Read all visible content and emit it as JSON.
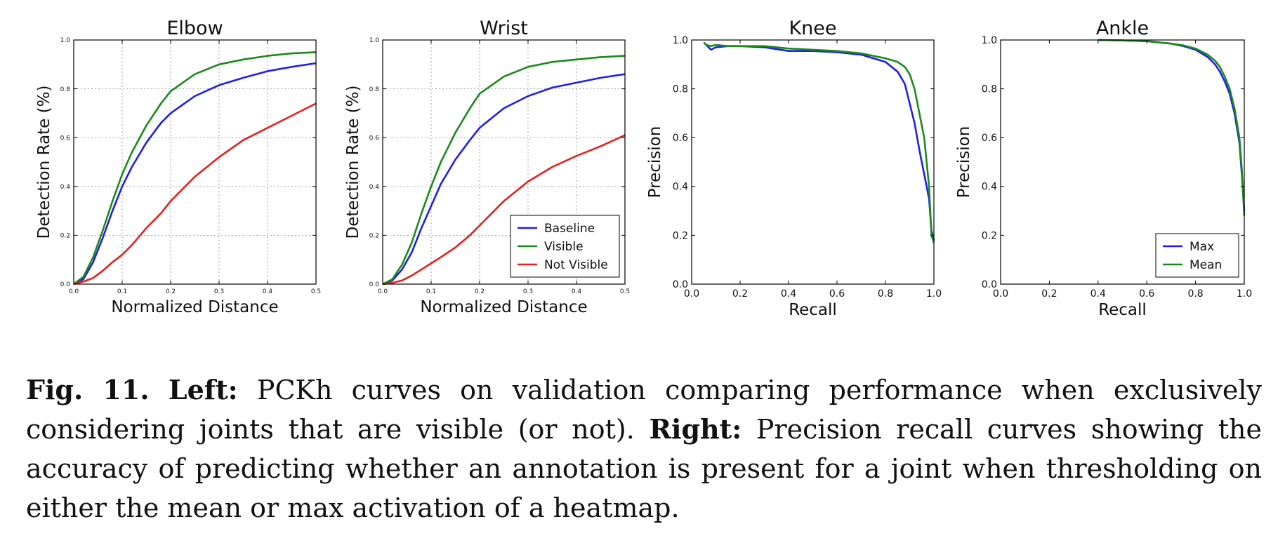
{
  "chart_data": [
    {
      "type": "line",
      "title": "Elbow",
      "xlabel": "Normalized Distance",
      "ylabel": "Detection Rate (%)",
      "xlim": [
        0,
        0.5
      ],
      "ylim": [
        0,
        1.0
      ],
      "xticks": [
        "0.0",
        "0.1",
        "0.2",
        "0.3",
        "0.4",
        "0.5"
      ],
      "yticks": [
        "0.0",
        "0.2",
        "0.4",
        "0.6",
        "0.8",
        "1.0"
      ],
      "grid": true,
      "legend": null,
      "series": [
        {
          "color": "#1f1fe6",
          "x": [
            0,
            0.02,
            0.04,
            0.06,
            0.08,
            0.1,
            0.12,
            0.15,
            0.18,
            0.2,
            0.25,
            0.3,
            0.35,
            0.4,
            0.45,
            0.5
          ],
          "y": [
            0,
            0.02,
            0.09,
            0.19,
            0.3,
            0.4,
            0.48,
            0.58,
            0.66,
            0.7,
            0.77,
            0.815,
            0.845,
            0.872,
            0.89,
            0.905
          ]
        },
        {
          "color": "#1a8a1a",
          "x": [
            0,
            0.02,
            0.04,
            0.06,
            0.08,
            0.1,
            0.12,
            0.15,
            0.18,
            0.2,
            0.25,
            0.3,
            0.35,
            0.4,
            0.45,
            0.5
          ],
          "y": [
            0,
            0.03,
            0.11,
            0.22,
            0.34,
            0.45,
            0.54,
            0.65,
            0.74,
            0.79,
            0.86,
            0.9,
            0.92,
            0.935,
            0.945,
            0.95
          ]
        },
        {
          "color": "#e61f1f",
          "x": [
            0,
            0.02,
            0.04,
            0.06,
            0.08,
            0.1,
            0.12,
            0.15,
            0.18,
            0.2,
            0.25,
            0.3,
            0.35,
            0.4,
            0.45,
            0.5
          ],
          "y": [
            0,
            0.01,
            0.025,
            0.055,
            0.09,
            0.12,
            0.16,
            0.23,
            0.29,
            0.34,
            0.44,
            0.52,
            0.59,
            0.64,
            0.69,
            0.74
          ]
        }
      ]
    },
    {
      "type": "line",
      "title": "Wrist",
      "xlabel": "Normalized Distance",
      "ylabel": "Detection Rate (%)",
      "xlim": [
        0,
        0.5
      ],
      "ylim": [
        0,
        1.0
      ],
      "xticks": [
        "0.0",
        "0.1",
        "0.2",
        "0.3",
        "0.4",
        "0.5"
      ],
      "yticks": [
        "0.0",
        "0.2",
        "0.4",
        "0.6",
        "0.8",
        "1.0"
      ],
      "grid": true,
      "legend": "lower-right",
      "series": [
        {
          "name": "Baseline",
          "color": "#1f1fe6",
          "x": [
            0,
            0.02,
            0.04,
            0.06,
            0.08,
            0.1,
            0.12,
            0.15,
            0.18,
            0.2,
            0.25,
            0.3,
            0.35,
            0.4,
            0.45,
            0.5
          ],
          "y": [
            0,
            0.015,
            0.06,
            0.13,
            0.23,
            0.32,
            0.41,
            0.51,
            0.59,
            0.64,
            0.72,
            0.77,
            0.805,
            0.825,
            0.845,
            0.86
          ]
        },
        {
          "name": "Visible",
          "color": "#1a8a1a",
          "x": [
            0,
            0.02,
            0.04,
            0.06,
            0.08,
            0.1,
            0.12,
            0.15,
            0.18,
            0.2,
            0.25,
            0.3,
            0.35,
            0.4,
            0.45,
            0.5
          ],
          "y": [
            0,
            0.02,
            0.08,
            0.17,
            0.29,
            0.4,
            0.5,
            0.62,
            0.72,
            0.78,
            0.85,
            0.89,
            0.91,
            0.92,
            0.93,
            0.935
          ]
        },
        {
          "name": "Not Visible",
          "color": "#e61f1f",
          "x": [
            0,
            0.02,
            0.04,
            0.06,
            0.08,
            0.1,
            0.12,
            0.15,
            0.18,
            0.2,
            0.25,
            0.3,
            0.35,
            0.4,
            0.45,
            0.5
          ],
          "y": [
            0,
            0.005,
            0.015,
            0.035,
            0.06,
            0.085,
            0.11,
            0.15,
            0.2,
            0.24,
            0.34,
            0.42,
            0.48,
            0.525,
            0.565,
            0.61
          ]
        }
      ]
    },
    {
      "type": "line",
      "title": "Knee",
      "xlabel": "Recall",
      "ylabel": "Precision",
      "xlim": [
        0,
        1.0
      ],
      "ylim": [
        0,
        1.0
      ],
      "xticks": [
        "0.0",
        "0.2",
        "0.4",
        "0.6",
        "0.8",
        "1.0"
      ],
      "yticks": [
        "0.0",
        "0.2",
        "0.4",
        "0.6",
        "0.8",
        "1.0"
      ],
      "grid": false,
      "legend": null,
      "series": [
        {
          "color": "#1f1fe6",
          "x": [
            0.05,
            0.06,
            0.08,
            0.1,
            0.15,
            0.2,
            0.3,
            0.4,
            0.5,
            0.6,
            0.7,
            0.8,
            0.85,
            0.88,
            0.9,
            0.92,
            0.94,
            0.96,
            0.98,
            0.99,
            1.0
          ],
          "y": [
            0.99,
            0.98,
            0.96,
            0.97,
            0.975,
            0.975,
            0.97,
            0.955,
            0.955,
            0.95,
            0.94,
            0.91,
            0.87,
            0.82,
            0.74,
            0.66,
            0.55,
            0.45,
            0.35,
            0.22,
            0.18
          ]
        },
        {
          "color": "#1a8a1a",
          "x": [
            0.05,
            0.06,
            0.08,
            0.1,
            0.15,
            0.2,
            0.3,
            0.4,
            0.5,
            0.6,
            0.7,
            0.8,
            0.85,
            0.88,
            0.9,
            0.92,
            0.94,
            0.96,
            0.98,
            0.99,
            1.0
          ],
          "y": [
            0.99,
            0.98,
            0.975,
            0.98,
            0.975,
            0.975,
            0.975,
            0.965,
            0.96,
            0.955,
            0.945,
            0.925,
            0.91,
            0.89,
            0.86,
            0.8,
            0.7,
            0.6,
            0.4,
            0.2,
            0.17
          ]
        }
      ]
    },
    {
      "type": "line",
      "title": "Ankle",
      "xlabel": "Recall",
      "ylabel": "Precision",
      "xlim": [
        0,
        1.0
      ],
      "ylim": [
        0,
        1.0
      ],
      "xticks": [
        "0.0",
        "0.2",
        "0.4",
        "0.6",
        "0.8",
        "1.0"
      ],
      "yticks": [
        "0.0",
        "0.2",
        "0.4",
        "0.6",
        "0.8",
        "1.0"
      ],
      "grid": false,
      "legend": "lower-right",
      "series": [
        {
          "name": "Max",
          "color": "#1f1fe6",
          "x": [
            0.4,
            0.5,
            0.6,
            0.7,
            0.75,
            0.8,
            0.85,
            0.88,
            0.9,
            0.92,
            0.94,
            0.96,
            0.98,
            0.99,
            1.0
          ],
          "y": [
            1.0,
            0.998,
            0.995,
            0.985,
            0.975,
            0.96,
            0.93,
            0.9,
            0.87,
            0.83,
            0.78,
            0.7,
            0.58,
            0.45,
            0.3
          ]
        },
        {
          "name": "Mean",
          "color": "#1a8a1a",
          "x": [
            0.4,
            0.5,
            0.6,
            0.7,
            0.75,
            0.8,
            0.85,
            0.88,
            0.9,
            0.92,
            0.94,
            0.96,
            0.98,
            0.99,
            1.0
          ],
          "y": [
            1.0,
            0.998,
            0.995,
            0.985,
            0.978,
            0.965,
            0.94,
            0.915,
            0.89,
            0.85,
            0.8,
            0.72,
            0.6,
            0.47,
            0.28
          ]
        }
      ]
    }
  ],
  "caption": {
    "fig_label": "Fig. 11.",
    "left_label": "Left:",
    "left_text": "PCKh curves on validation comparing performance when exclusively considering joints that are visible (or not).",
    "right_label": "Right:",
    "right_text": "Precision recall curves showing the accuracy of predicting whether an annotation is present for a joint when thresholding on either the mean or max activation of a heatmap."
  }
}
